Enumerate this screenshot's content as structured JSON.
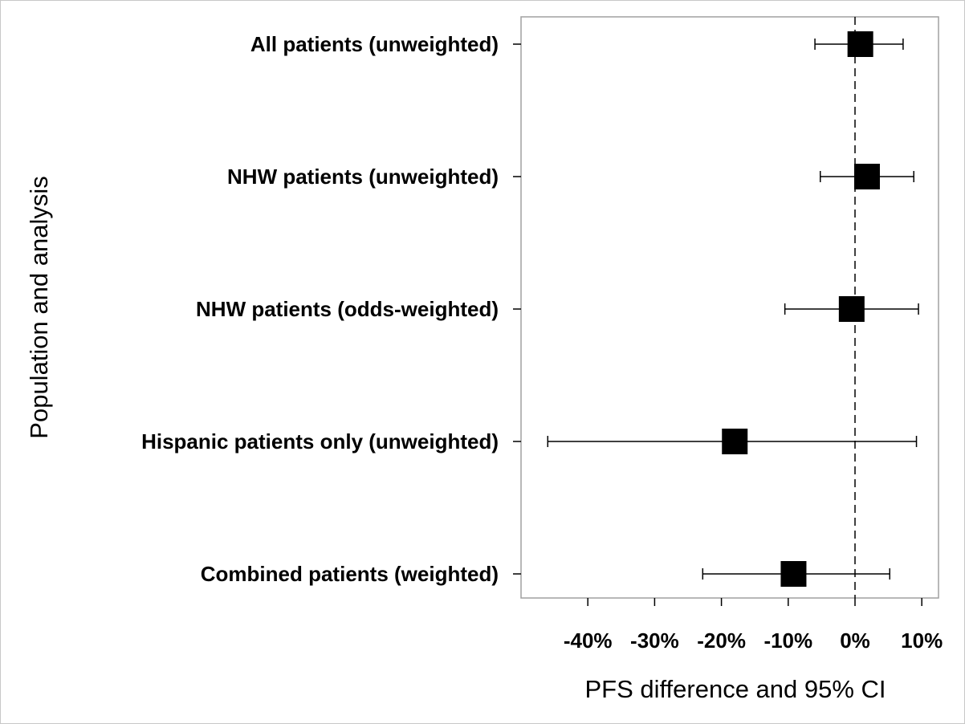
{
  "chart_data": {
    "type": "forest",
    "xlabel": "PFS difference and 95% CI",
    "ylabel": "Population and analysis",
    "xlim": [
      -50,
      12.5
    ],
    "xticks": [
      -40,
      -30,
      -20,
      -10,
      0,
      10
    ],
    "xtick_labels": [
      "-40%",
      "-30%",
      "-20%",
      "-10%",
      "0%",
      "10%"
    ],
    "reference_line": 0,
    "grid": false,
    "legend": "none",
    "marker": "square",
    "marker_color": "#000000",
    "categories": [
      "All patients (unweighted)",
      "NHW patients (unweighted)",
      "NHW patients (odds-weighted)",
      "Hispanic patients only (unweighted)",
      "Combined patients (weighted)"
    ],
    "estimates": [
      0.8,
      1.8,
      -0.5,
      -18.0,
      -9.2
    ],
    "ci_lower": [
      -6.0,
      -5.2,
      -10.5,
      -46.0,
      -22.8
    ],
    "ci_upper": [
      7.2,
      8.8,
      9.5,
      9.2,
      5.2
    ]
  }
}
